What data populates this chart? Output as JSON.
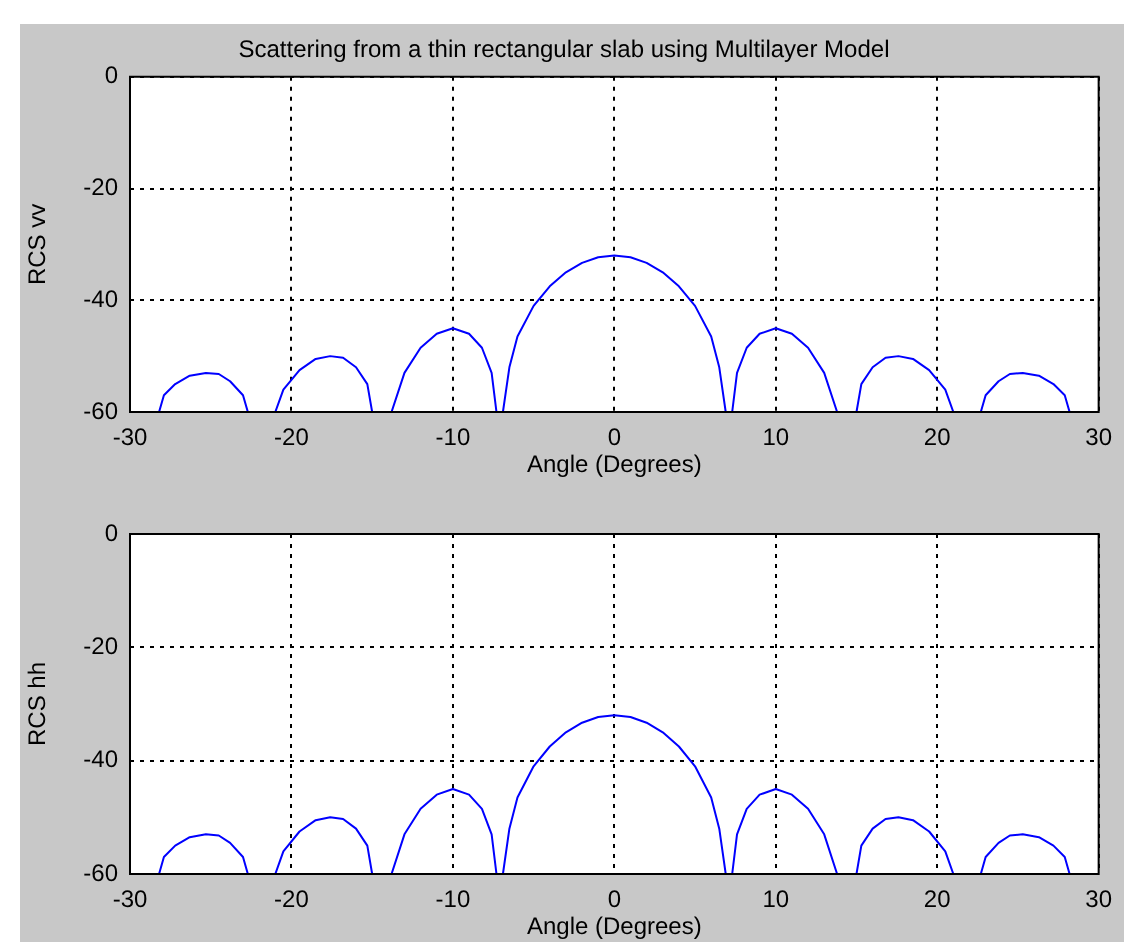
{
  "chart_data": [
    {
      "type": "line",
      "title": "Scattering from a thin rectangular slab using Multilayer Model",
      "xlabel": "Angle (Degrees)",
      "ylabel": "RCS vv",
      "xlim": [
        -30,
        30
      ],
      "ylim": [
        -60,
        0
      ],
      "xticks": [
        -30,
        -20,
        -10,
        0,
        10,
        20,
        30
      ],
      "yticks": [
        -60,
        -40,
        -20,
        0
      ],
      "grid": true,
      "marker": "none",
      "series": [
        {
          "color": "#0000ff",
          "x": [
            -28.2,
            -27.9,
            -27.2,
            -26.3,
            -25.3,
            -24.5,
            -23.8,
            -23,
            -22.7,
            -22,
            -21,
            -20.5,
            -19.5,
            -18.5,
            -17.6,
            -16.8,
            -16,
            -15.3,
            -15,
            -14.4,
            -13.8,
            -13,
            -12,
            -11,
            -10,
            -9,
            -8.2,
            -7.6,
            -7.3,
            -7.1,
            -6.9,
            -6.5,
            -6,
            -5,
            -4,
            -3,
            -2,
            -1,
            0,
            1,
            2,
            3,
            4,
            5,
            6,
            6.5,
            6.9,
            7.1,
            7.3,
            7.6,
            8.2,
            9,
            10,
            11,
            12,
            13,
            13.8,
            14.4,
            15,
            15.3,
            16,
            16.8,
            17.6,
            18.5,
            19.5,
            20.5,
            21,
            22,
            22.7,
            23,
            23.8,
            24.5,
            25.3,
            26.3,
            27.2,
            27.9,
            28.2
          ],
          "values": [
            -60,
            -57,
            -55,
            -53.5,
            -53,
            -53.2,
            -54.5,
            -57,
            -60,
            null,
            -60,
            -56,
            -52.5,
            -50.5,
            -50,
            -50.3,
            -52,
            -55,
            -60,
            null,
            -60,
            -53,
            -48.5,
            -46,
            -45,
            -46,
            -48.5,
            -53,
            -60,
            null,
            -60,
            -52,
            -46.5,
            -41,
            -37.5,
            -35,
            -33.3,
            -32.3,
            -32,
            -32.3,
            -33.3,
            -35,
            -37.5,
            -41,
            -46.5,
            -52,
            -60,
            null,
            -60,
            -53,
            -48.5,
            -46,
            -45,
            -46,
            -48.5,
            -53,
            -60,
            null,
            -60,
            -55,
            -52,
            -50.3,
            -50,
            -50.5,
            -52.5,
            -56,
            -60,
            null,
            -60,
            -57,
            -54.5,
            -53.2,
            -53,
            -53.5,
            -55,
            -57,
            -60
          ]
        }
      ]
    },
    {
      "type": "line",
      "xlabel": "Angle (Degrees)",
      "ylabel": "RCS hh",
      "xlim": [
        -30,
        30
      ],
      "ylim": [
        -60,
        0
      ],
      "xticks": [
        -30,
        -20,
        -10,
        0,
        10,
        20,
        30
      ],
      "yticks": [
        -60,
        -40,
        -20,
        0
      ],
      "grid": true,
      "marker": "none",
      "series": [
        {
          "color": "#0000ff",
          "x": [
            -28.2,
            -27.9,
            -27.2,
            -26.3,
            -25.3,
            -24.5,
            -23.8,
            -23,
            -22.7,
            -22,
            -21,
            -20.5,
            -19.5,
            -18.5,
            -17.6,
            -16.8,
            -16,
            -15.3,
            -15,
            -14.4,
            -13.8,
            -13,
            -12,
            -11,
            -10,
            -9,
            -8.2,
            -7.6,
            -7.3,
            -7.1,
            -6.9,
            -6.5,
            -6,
            -5,
            -4,
            -3,
            -2,
            -1,
            0,
            1,
            2,
            3,
            4,
            5,
            6,
            6.5,
            6.9,
            7.1,
            7.3,
            7.6,
            8.2,
            9,
            10,
            11,
            12,
            13,
            13.8,
            14.4,
            15,
            15.3,
            16,
            16.8,
            17.6,
            18.5,
            19.5,
            20.5,
            21,
            22,
            22.7,
            23,
            23.8,
            24.5,
            25.3,
            26.3,
            27.2,
            27.9,
            28.2
          ],
          "values": [
            -60,
            -57,
            -55,
            -53.5,
            -53,
            -53.2,
            -54.5,
            -57,
            -60,
            null,
            -60,
            -56,
            -52.5,
            -50.5,
            -50,
            -50.3,
            -52,
            -55,
            -60,
            null,
            -60,
            -53,
            -48.5,
            -46,
            -45,
            -46,
            -48.5,
            -53,
            -60,
            null,
            -60,
            -52,
            -46.5,
            -41,
            -37.5,
            -35,
            -33.3,
            -32.3,
            -32,
            -32.3,
            -33.3,
            -35,
            -37.5,
            -41,
            -46.5,
            -52,
            -60,
            null,
            -60,
            -53,
            -48.5,
            -46,
            -45,
            -46,
            -48.5,
            -53,
            -60,
            null,
            -60,
            -55,
            -52,
            -50.3,
            -50,
            -50.5,
            -52.5,
            -56,
            -60,
            null,
            -60,
            -57,
            -54.5,
            -53.2,
            -53,
            -53.5,
            -55,
            -57,
            -60
          ]
        }
      ]
    }
  ]
}
